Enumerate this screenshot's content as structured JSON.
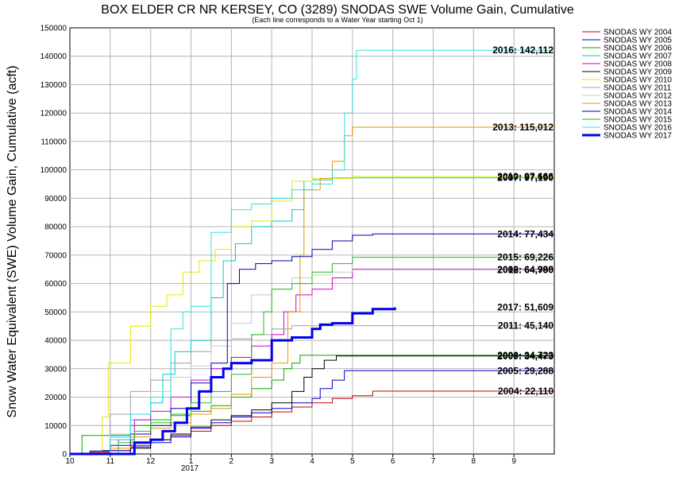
{
  "chart_data": {
    "type": "line",
    "title": "BOX ELDER CR NR KERSEY, CO (3289) SNODAS SWE Volume Gain, Cumulative",
    "subtitle": "(Each line corresponds to a Water Year starting Oct 1)",
    "ylabel": "Snow Water Equivalent (SWE) Volume Gain, Cumulative (acft)",
    "xlabel": "",
    "x_year_label": "2017",
    "xlim": [
      0,
      12
    ],
    "ylim": [
      0,
      150000
    ],
    "x_ticks": [
      {
        "x": 0,
        "label": "10"
      },
      {
        "x": 1,
        "label": "11"
      },
      {
        "x": 2,
        "label": "12"
      },
      {
        "x": 3,
        "label": "1"
      },
      {
        "x": 4,
        "label": "2"
      },
      {
        "x": 5,
        "label": "3"
      },
      {
        "x": 6,
        "label": "4"
      },
      {
        "x": 7,
        "label": "5"
      },
      {
        "x": 8,
        "label": "6"
      },
      {
        "x": 9,
        "label": "7"
      },
      {
        "x": 10,
        "label": "8"
      },
      {
        "x": 11,
        "label": "9"
      }
    ],
    "y_ticks": [
      0,
      10000,
      20000,
      30000,
      40000,
      50000,
      60000,
      70000,
      80000,
      90000,
      100000,
      110000,
      120000,
      130000,
      140000,
      150000
    ],
    "grid": true,
    "legend_position": "right",
    "series": [
      {
        "name": "SNODAS WY 2004",
        "color": "#cc0000",
        "width": 1,
        "end_label": "2004: 22,110",
        "points": [
          [
            0,
            0
          ],
          [
            0.5,
            600
          ],
          [
            1,
            1200
          ],
          [
            1.5,
            3000
          ],
          [
            2,
            5000
          ],
          [
            2.5,
            6500
          ],
          [
            3,
            8000
          ],
          [
            3.5,
            10000
          ],
          [
            4,
            11500
          ],
          [
            4.5,
            13000
          ],
          [
            5,
            14800
          ],
          [
            5.5,
            16500
          ],
          [
            6,
            18000
          ],
          [
            6.5,
            19500
          ],
          [
            7,
            20500
          ],
          [
            7.5,
            22110
          ],
          [
            12,
            22110
          ]
        ]
      },
      {
        "name": "SNODAS WY 2005",
        "color": "#0000cc",
        "width": 1,
        "end_label": "2005: 29,288",
        "points": [
          [
            0,
            0
          ],
          [
            0.8,
            1200
          ],
          [
            1.5,
            2500
          ],
          [
            2,
            4000
          ],
          [
            2.5,
            6000
          ],
          [
            3,
            9000
          ],
          [
            3.5,
            11000
          ],
          [
            4,
            13000
          ],
          [
            4.5,
            14500
          ],
          [
            5,
            16000
          ],
          [
            5.5,
            18000
          ],
          [
            6,
            19500
          ],
          [
            6.2,
            23000
          ],
          [
            6.5,
            26000
          ],
          [
            6.8,
            29288
          ],
          [
            12,
            29288
          ]
        ]
      },
      {
        "name": "SNODAS WY 2006",
        "color": "#00aa00",
        "width": 1,
        "end_label": "2006: 34,723",
        "points": [
          [
            0,
            0
          ],
          [
            0.3,
            6500
          ],
          [
            1,
            6600
          ],
          [
            1.5,
            10000
          ],
          [
            2,
            12000
          ],
          [
            2.5,
            13500
          ],
          [
            3,
            15000
          ],
          [
            3.5,
            17000
          ],
          [
            4,
            20000
          ],
          [
            4.5,
            23000
          ],
          [
            5,
            26000
          ],
          [
            5.3,
            30000
          ],
          [
            5.5,
            32000
          ],
          [
            5.7,
            34723
          ],
          [
            12,
            34723
          ]
        ]
      },
      {
        "name": "SNODAS WY 2007",
        "color": "#00cccc",
        "width": 1,
        "end_label": "2007: 97,190",
        "points": [
          [
            0,
            0
          ],
          [
            1,
            6000
          ],
          [
            1.5,
            12000
          ],
          [
            2,
            18000
          ],
          [
            2.3,
            28000
          ],
          [
            2.6,
            36000
          ],
          [
            3,
            40000
          ],
          [
            3.5,
            55000
          ],
          [
            3.8,
            68000
          ],
          [
            4.1,
            74000
          ],
          [
            4.5,
            80000
          ],
          [
            5,
            82000
          ],
          [
            5.5,
            86000
          ],
          [
            5.8,
            96000
          ],
          [
            6,
            96500
          ],
          [
            6.5,
            97190
          ],
          [
            12,
            97190
          ]
        ]
      },
      {
        "name": "SNODAS WY 2008",
        "color": "#cc00cc",
        "width": 1,
        "end_label": "2008: 64,988",
        "points": [
          [
            0,
            0
          ],
          [
            1.2,
            5000
          ],
          [
            1.6,
            12000
          ],
          [
            2,
            15000
          ],
          [
            2.5,
            20000
          ],
          [
            3,
            26000
          ],
          [
            3.5,
            30000
          ],
          [
            4,
            34000
          ],
          [
            4.5,
            38000
          ],
          [
            5,
            42000
          ],
          [
            5.3,
            50000
          ],
          [
            5.6,
            56000
          ],
          [
            6,
            58000
          ],
          [
            6.5,
            62000
          ],
          [
            7,
            64988
          ],
          [
            12,
            64988
          ]
        ]
      },
      {
        "name": "SNODAS WY 2009",
        "color": "#000000",
        "width": 1,
        "end_label": "2009: 34,473",
        "points": [
          [
            0,
            0
          ],
          [
            1.5,
            2000
          ],
          [
            2,
            5000
          ],
          [
            2.5,
            7000
          ],
          [
            3,
            9500
          ],
          [
            3.5,
            12000
          ],
          [
            4,
            13500
          ],
          [
            4.5,
            15500
          ],
          [
            5,
            18000
          ],
          [
            5.5,
            22000
          ],
          [
            5.8,
            27000
          ],
          [
            6,
            30000
          ],
          [
            6.3,
            33000
          ],
          [
            6.6,
            34473
          ],
          [
            12,
            34473
          ]
        ]
      },
      {
        "name": "SNODAS WY 2010",
        "color": "#e6e600",
        "width": 1,
        "end_label": "2010: 97,666",
        "points": [
          [
            0,
            0
          ],
          [
            0.8,
            13000
          ],
          [
            0.95,
            32000
          ],
          [
            1.5,
            45000
          ],
          [
            2,
            52000
          ],
          [
            2.4,
            56000
          ],
          [
            2.8,
            64000
          ],
          [
            3.2,
            68000
          ],
          [
            3.6,
            72000
          ],
          [
            4,
            80000
          ],
          [
            4.5,
            82000
          ],
          [
            5,
            89000
          ],
          [
            5.5,
            96000
          ],
          [
            6,
            97000
          ],
          [
            7,
            97666
          ],
          [
            12,
            97666
          ]
        ]
      },
      {
        "name": "SNODAS WY 2011",
        "color": "#a0a0a0",
        "width": 1,
        "end_label": "2011: 45,140",
        "points": [
          [
            0,
            0
          ],
          [
            0.5,
            1000
          ],
          [
            1,
            14000
          ],
          [
            1.5,
            22000
          ],
          [
            2,
            26000
          ],
          [
            2.5,
            32000
          ],
          [
            3,
            36000
          ],
          [
            3.5,
            40000
          ],
          [
            4,
            40500
          ],
          [
            4.5,
            42000
          ],
          [
            5,
            44000
          ],
          [
            5.5,
            45140
          ],
          [
            12,
            45140
          ]
        ]
      },
      {
        "name": "SNODAS WY 2012",
        "color": "#c8c8c8",
        "width": 1,
        "end_label": "2012: 64,790",
        "points": [
          [
            0,
            0
          ],
          [
            1,
            7000
          ],
          [
            1.5,
            14000
          ],
          [
            2,
            22000
          ],
          [
            2.5,
            27000
          ],
          [
            3,
            31000
          ],
          [
            3.5,
            38000
          ],
          [
            4,
            46000
          ],
          [
            4.5,
            56000
          ],
          [
            5,
            58000
          ],
          [
            5.5,
            62000
          ],
          [
            6,
            63000
          ],
          [
            6.5,
            64000
          ],
          [
            7,
            64790
          ],
          [
            12,
            64790
          ]
        ]
      },
      {
        "name": "SNODAS WY 2013",
        "color": "#e69500",
        "width": 1,
        "end_label": "2013: 115,012",
        "points": [
          [
            0,
            0
          ],
          [
            1,
            2000
          ],
          [
            1.5,
            6000
          ],
          [
            2,
            9000
          ],
          [
            2.5,
            11000
          ],
          [
            3,
            14000
          ],
          [
            3.5,
            16000
          ],
          [
            4,
            21000
          ],
          [
            4.5,
            27000
          ],
          [
            5,
            32000
          ],
          [
            5.4,
            50000
          ],
          [
            5.7,
            70000
          ],
          [
            5.8,
            93000
          ],
          [
            6.2,
            97000
          ],
          [
            6.5,
            103000
          ],
          [
            6.8,
            112000
          ],
          [
            7,
            115012
          ],
          [
            12,
            115012
          ]
        ]
      },
      {
        "name": "SNODAS WY 2014",
        "color": "#0000aa",
        "width": 1,
        "end_label": "2014: 77,434",
        "points": [
          [
            0,
            0
          ],
          [
            0.5,
            1000
          ],
          [
            1,
            3000
          ],
          [
            1.5,
            7000
          ],
          [
            2,
            10000
          ],
          [
            2.5,
            16000
          ],
          [
            3,
            25000
          ],
          [
            3.5,
            32000
          ],
          [
            3.9,
            60000
          ],
          [
            4.2,
            65000
          ],
          [
            4.6,
            67000
          ],
          [
            5,
            68000
          ],
          [
            5.5,
            69500
          ],
          [
            6,
            72000
          ],
          [
            6.5,
            75000
          ],
          [
            7,
            77000
          ],
          [
            7.5,
            77434
          ],
          [
            12,
            77434
          ]
        ]
      },
      {
        "name": "SNODAS WY 2015",
        "color": "#22bb22",
        "width": 1,
        "end_label": "2015: 69,226",
        "points": [
          [
            0,
            0
          ],
          [
            1.2,
            4000
          ],
          [
            1.6,
            8000
          ],
          [
            2,
            11000
          ],
          [
            2.5,
            14000
          ],
          [
            3,
            18000
          ],
          [
            3.5,
            22000
          ],
          [
            4,
            28000
          ],
          [
            4.5,
            42000
          ],
          [
            4.8,
            50000
          ],
          [
            5,
            58000
          ],
          [
            5.5,
            60000
          ],
          [
            6,
            64000
          ],
          [
            6.5,
            67000
          ],
          [
            7,
            69226
          ],
          [
            12,
            69226
          ]
        ]
      },
      {
        "name": "SNODAS WY 2016",
        "color": "#33dddd",
        "width": 1,
        "end_label": "2016: 142,112",
        "points": [
          [
            0,
            0
          ],
          [
            1,
            5000
          ],
          [
            1.5,
            14000
          ],
          [
            2,
            20000
          ],
          [
            2.5,
            44000
          ],
          [
            2.8,
            50000
          ],
          [
            3,
            52000
          ],
          [
            3.5,
            78000
          ],
          [
            4,
            86000
          ],
          [
            4.5,
            88000
          ],
          [
            5,
            90000
          ],
          [
            5.5,
            93000
          ],
          [
            6,
            95000
          ],
          [
            6.5,
            100000
          ],
          [
            6.8,
            120000
          ],
          [
            7,
            132000
          ],
          [
            7.1,
            142112
          ],
          [
            12,
            142112
          ]
        ]
      },
      {
        "name": "SNODAS WY 2017",
        "color": "#0000ee",
        "width": 3,
        "end_label": "2017: 51,609",
        "points": [
          [
            0,
            0
          ],
          [
            1.5,
            0
          ],
          [
            1.6,
            4000
          ],
          [
            2,
            5000
          ],
          [
            2.3,
            8000
          ],
          [
            2.6,
            11000
          ],
          [
            2.9,
            16000
          ],
          [
            3.2,
            22000
          ],
          [
            3.5,
            27000
          ],
          [
            3.8,
            30000
          ],
          [
            4,
            32000
          ],
          [
            4.5,
            33000
          ],
          [
            5,
            40000
          ],
          [
            5.5,
            41000
          ],
          [
            6,
            44000
          ],
          [
            6.2,
            45500
          ],
          [
            6.5,
            46000
          ],
          [
            7,
            49500
          ],
          [
            7.5,
            51000
          ],
          [
            8.05,
            51609
          ]
        ]
      }
    ]
  }
}
